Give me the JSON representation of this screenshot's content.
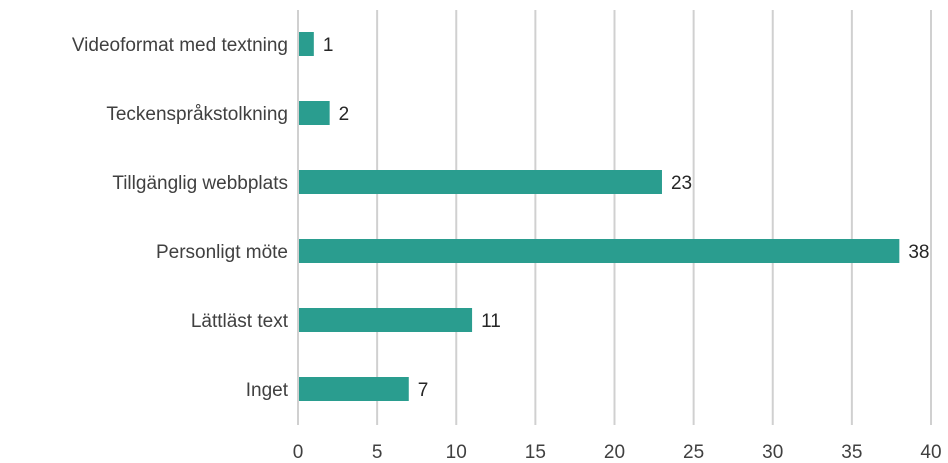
{
  "chart_data": {
    "type": "bar",
    "orientation": "horizontal",
    "categories": [
      "Videoformat med textning",
      "Teckenspråkstolkning",
      "Tillgänglig webbplats",
      "Personligt möte",
      "Lättläst text",
      "Inget"
    ],
    "values": [
      1,
      2,
      23,
      38,
      11,
      7
    ],
    "data_labels": [
      "1",
      "2",
      "23",
      "38",
      "11",
      "7"
    ],
    "x_ticks": [
      "0",
      "5",
      "10",
      "15",
      "20",
      "25",
      "30",
      "35",
      "40"
    ],
    "xlim": [
      0,
      40
    ],
    "grid": "vertical",
    "legend": "none",
    "title": "",
    "xlabel": "",
    "ylabel": ""
  },
  "colors": {
    "bar": "#2a9d8f",
    "grid": "#d0d0d0",
    "text": "#404040"
  }
}
